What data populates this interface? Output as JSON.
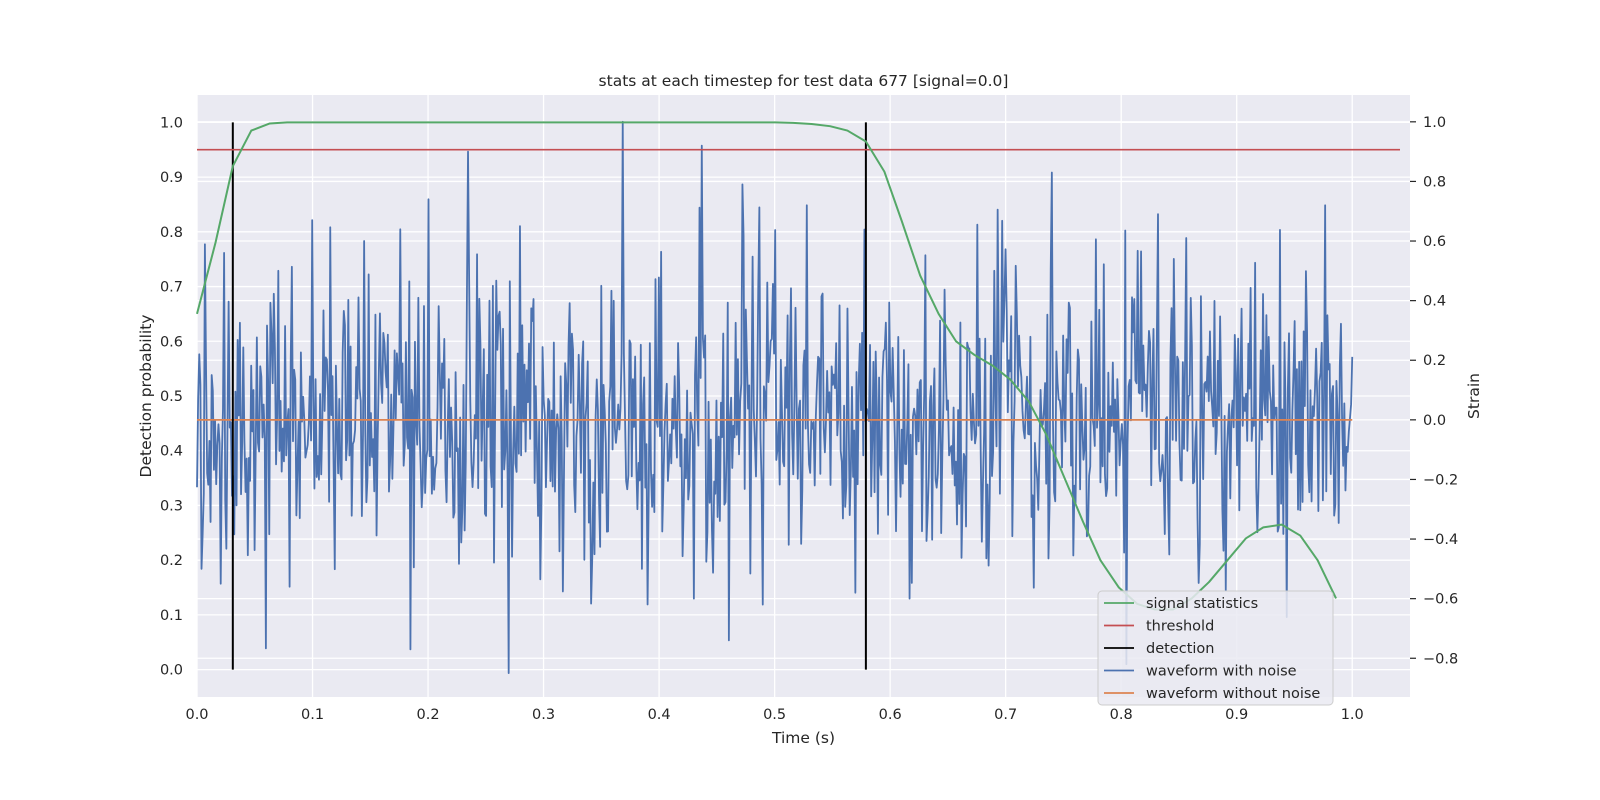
{
  "chart_data": {
    "type": "line",
    "title": "stats at each timestep for test data 677 [signal=0.0]",
    "xlabel": "Time (s)",
    "ylabel": "Detection probability",
    "ylabel_right": "Strain",
    "xlim": [
      0.0,
      1.05
    ],
    "ylim": [
      -0.05,
      1.05
    ],
    "ylim_right": [
      -0.93,
      1.09
    ],
    "x_ticks": [
      0.0,
      0.1,
      0.2,
      0.3,
      0.4,
      0.5,
      0.6,
      0.7,
      0.8,
      0.9,
      1.0
    ],
    "y_ticks": [
      0.0,
      0.1,
      0.2,
      0.3,
      0.4,
      0.5,
      0.6,
      0.7,
      0.8,
      0.9,
      1.0
    ],
    "y_right_ticks": [
      -0.8,
      -0.6,
      -0.4,
      -0.2,
      0.0,
      0.2,
      0.4,
      0.6,
      0.8,
      1.0
    ],
    "x_tick_labels": [
      "0.0",
      "0.1",
      "0.2",
      "0.3",
      "0.4",
      "0.5",
      "0.6",
      "0.7",
      "0.8",
      "0.9",
      "1.0"
    ],
    "y_tick_labels": [
      "0.0",
      "0.1",
      "0.2",
      "0.3",
      "0.4",
      "0.5",
      "0.6",
      "0.7",
      "0.8",
      "0.9",
      "1.0"
    ],
    "y_right_tick_labels": [
      "−0.8",
      "−0.6",
      "−0.4",
      "−0.2",
      "0.0",
      "0.2",
      "0.4",
      "0.6",
      "0.8",
      "1.0"
    ],
    "grid": true,
    "legend_position": "lower-right",
    "style": {
      "background": "#eaeaf2",
      "grid_color": "#ffffff",
      "text_color": "#262626"
    },
    "threshold": {
      "name": "threshold",
      "value": 0.95,
      "color": "#c44e52"
    },
    "detections": {
      "name": "detection",
      "times": [
        0.031,
        0.579
      ],
      "y_range": [
        0.0,
        1.0
      ],
      "color": "#000000"
    },
    "series": [
      {
        "name": "signal statistics",
        "axis": "left",
        "color": "#55a868",
        "x": [
          0.0,
          0.016,
          0.031,
          0.047,
          0.063,
          0.078,
          0.094,
          0.11,
          0.125,
          0.141,
          0.157,
          0.172,
          0.188,
          0.204,
          0.219,
          0.235,
          0.25,
          0.266,
          0.282,
          0.297,
          0.313,
          0.329,
          0.344,
          0.36,
          0.376,
          0.391,
          0.407,
          0.423,
          0.438,
          0.454,
          0.47,
          0.485,
          0.501,
          0.516,
          0.532,
          0.548,
          0.563,
          0.579,
          0.595,
          0.61,
          0.626,
          0.642,
          0.657,
          0.673,
          0.689,
          0.704,
          0.72,
          0.735,
          0.751,
          0.767,
          0.782,
          0.798,
          0.814,
          0.829,
          0.845,
          0.861,
          0.876,
          0.892,
          0.908,
          0.923,
          0.939,
          0.955,
          0.97,
          0.986
        ],
        "values": [
          0.65,
          0.78,
          0.92,
          0.985,
          0.998,
          1.0,
          1.0,
          1.0,
          1.0,
          1.0,
          1.0,
          1.0,
          1.0,
          1.0,
          1.0,
          1.0,
          1.0,
          1.0,
          1.0,
          1.0,
          1.0,
          1.0,
          1.0,
          1.0,
          1.0,
          1.0,
          1.0,
          1.0,
          1.0,
          1.0,
          1.0,
          1.0,
          1.0,
          0.999,
          0.997,
          0.993,
          0.985,
          0.965,
          0.91,
          0.82,
          0.72,
          0.65,
          0.6,
          0.575,
          0.555,
          0.53,
          0.49,
          0.43,
          0.35,
          0.27,
          0.2,
          0.15,
          0.12,
          0.11,
          0.11,
          0.13,
          0.16,
          0.2,
          0.24,
          0.26,
          0.265,
          0.245,
          0.2,
          0.13
        ]
      },
      {
        "name": "waveform with noise",
        "axis": "right",
        "color": "#4c72b0",
        "x_range": [
          0.0,
          1.0
        ],
        "n_points": 1024,
        "noise_model": "gaussian",
        "noise_sigma": 0.24,
        "noise_seed": 677,
        "peaks": [
          {
            "x": 0.002,
            "y": 0.22
          },
          {
            "x": 0.004,
            "y": -0.5
          },
          {
            "x": 0.021,
            "y": -0.55
          },
          {
            "x": 0.023,
            "y": 0.56
          },
          {
            "x": 0.07,
            "y": 0.5
          },
          {
            "x": 0.08,
            "y": -0.56
          },
          {
            "x": 0.1,
            "y": 0.67
          },
          {
            "x": 0.145,
            "y": 0.6
          },
          {
            "x": 0.185,
            "y": -0.77
          },
          {
            "x": 0.2,
            "y": 0.74
          },
          {
            "x": 0.235,
            "y": 0.9
          },
          {
            "x": 0.27,
            "y": -0.85
          },
          {
            "x": 0.28,
            "y": 0.65
          },
          {
            "x": 0.369,
            "y": 1.0
          },
          {
            "x": 0.385,
            "y": -0.5
          },
          {
            "x": 0.43,
            "y": -0.6
          },
          {
            "x": 0.437,
            "y": 0.92
          },
          {
            "x": 0.46,
            "y": -0.74
          },
          {
            "x": 0.472,
            "y": 0.79
          },
          {
            "x": 0.49,
            "y": -0.62
          },
          {
            "x": 0.528,
            "y": 0.72
          },
          {
            "x": 0.57,
            "y": -0.58
          },
          {
            "x": 0.617,
            "y": -0.6
          },
          {
            "x": 0.69,
            "y": 0.5
          },
          {
            "x": 0.74,
            "y": 0.83
          },
          {
            "x": 0.832,
            "y": 0.69
          },
          {
            "x": 0.977,
            "y": 0.72
          }
        ]
      },
      {
        "name": "waveform without noise",
        "axis": "right",
        "color": "#dd8452",
        "x": [
          0.0,
          1.0
        ],
        "values": [
          0.0,
          0.0
        ]
      }
    ],
    "legend": [
      "signal statistics",
      "threshold",
      "detection",
      "waveform with noise",
      "waveform without noise"
    ]
  }
}
